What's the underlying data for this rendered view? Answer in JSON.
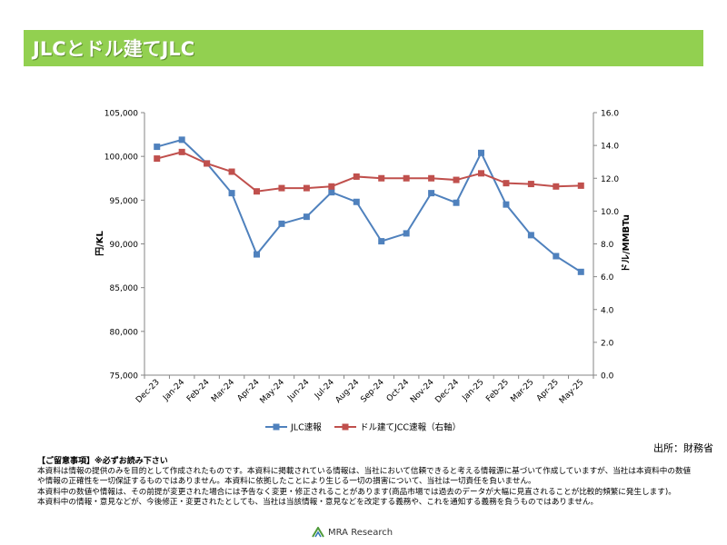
{
  "title": "JLCとドル建てJLC",
  "source": "出所：財務省",
  "notes": {
    "header": "【ご留意事項】※必ずお読み下さい",
    "lines": [
      "本資料は情報の提供のみを目的として作成されたものです。本資料に掲載されている情報は、当社において信頼できると考える情報源に基づいて作成していますが、当社は本資料中の数値や情報の正確性を一切保証するものではありません。本資料に依拠したことにより生じる一切の損害について、当社は一切責任を負いません。",
      "本資料中の数値や情報は、その前提が変更された場合には予告なく変更・修正されることがあります(商品市場では過去のデータが大幅に見直されることが比較的頻繁に発生します)。",
      "本資料中の情報・意見などが、今後修正・変更されたとしても、当社は当該情報・意見などを改定する義務や、これを通知する義務を負うものではありません。"
    ]
  },
  "logo": {
    "text": "MRA Research",
    "icon": "mra-logo-icon"
  },
  "chart_data": {
    "type": "line",
    "categories": [
      "Dec-23",
      "Jan-24",
      "Feb-24",
      "Mar-24",
      "Apr-24",
      "May-24",
      "Jun-24",
      "Jul-24",
      "Aug-24",
      "Sep-24",
      "Oct-24",
      "Nov-24",
      "Dec-24",
      "Jan-25",
      "Feb-25",
      "Mar-25",
      "Apr-25",
      "May-25"
    ],
    "ylabel": "円/KL",
    "y2label": "ドル/MMBTu",
    "ylim": [
      75000,
      105000
    ],
    "y2lim": [
      0,
      16
    ],
    "yticks": [
      "75,000",
      "80,000",
      "85,000",
      "90,000",
      "95,000",
      "100,000",
      "105,000"
    ],
    "y2ticks": [
      "0.0",
      "2.0",
      "4.0",
      "6.0",
      "8.0",
      "10.0",
      "12.0",
      "14.0",
      "16.0"
    ],
    "grid": false,
    "legend_position": "bottom",
    "series": [
      {
        "name": "JLC速報",
        "axis": "left",
        "color": "#4f81bd",
        "values": [
          101100,
          101900,
          99200,
          95800,
          88800,
          92300,
          93100,
          95900,
          94800,
          90300,
          91200,
          95800,
          94700,
          100400,
          94500,
          91000,
          88600,
          86800
        ]
      },
      {
        "name": "ドル建てJCC速報（右軸）",
        "axis": "right",
        "color": "#c0504d",
        "values": [
          13.2,
          13.6,
          12.9,
          12.4,
          11.2,
          11.4,
          11.4,
          11.5,
          12.1,
          12.0,
          12.0,
          12.0,
          11.9,
          12.3,
          11.7,
          11.65,
          11.5,
          11.55
        ]
      }
    ]
  }
}
